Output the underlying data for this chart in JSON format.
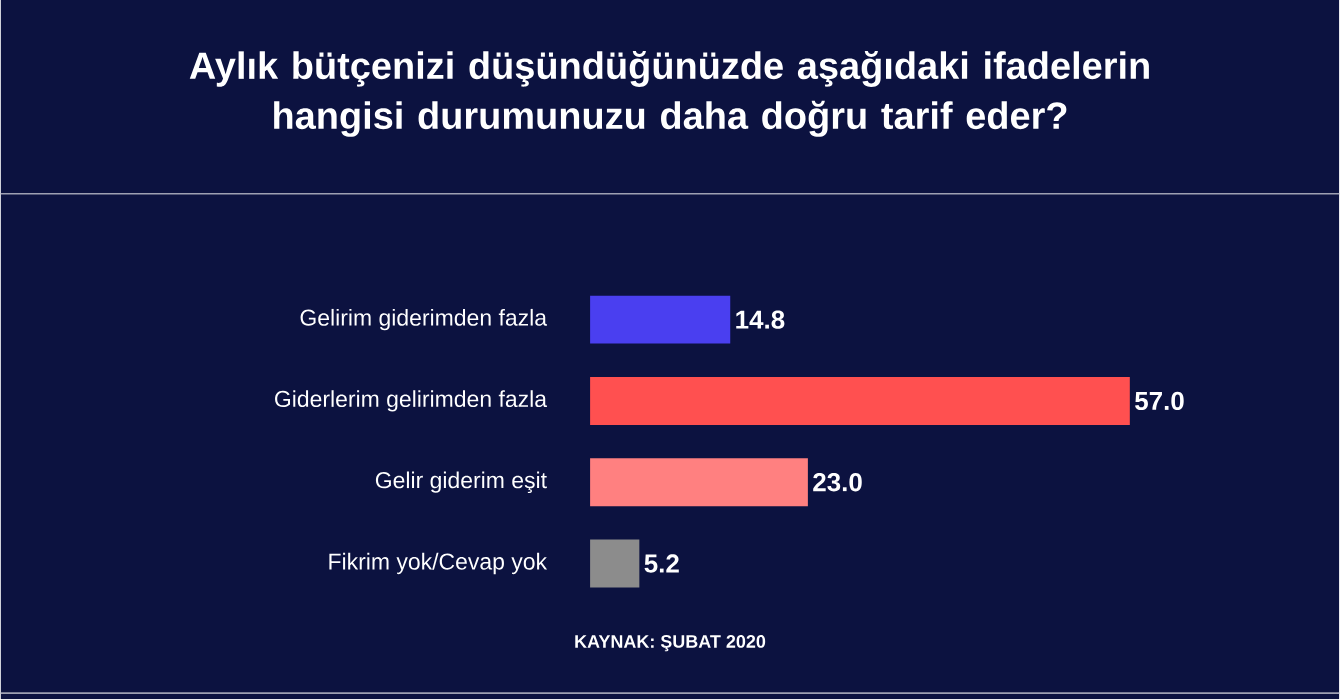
{
  "chart_data": {
    "type": "bar",
    "orientation": "horizontal",
    "title": "Aylık bütçenizi düşündüğünüzde aşağıdaki ifadelerin hangisi durumunuzu daha doğru tarif eder?",
    "categories": [
      "Gelirim giderimden fazla",
      "Giderlerim gelirimden fazla",
      "Gelir giderim eşit",
      "Fikrim yok/Cevap yok"
    ],
    "values": [
      14.8,
      57.0,
      23.0,
      5.2
    ],
    "colors": [
      "#4a3ff0",
      "#ff5050",
      "#ff8080",
      "#8c8c8c"
    ],
    "value_labels": [
      "14.8",
      "57.0",
      "23.0",
      "5.2"
    ],
    "tick_labels": "y",
    "grid": false,
    "annotations": [
      "KAYNAK: ŞUBAT 2020"
    ]
  }
}
